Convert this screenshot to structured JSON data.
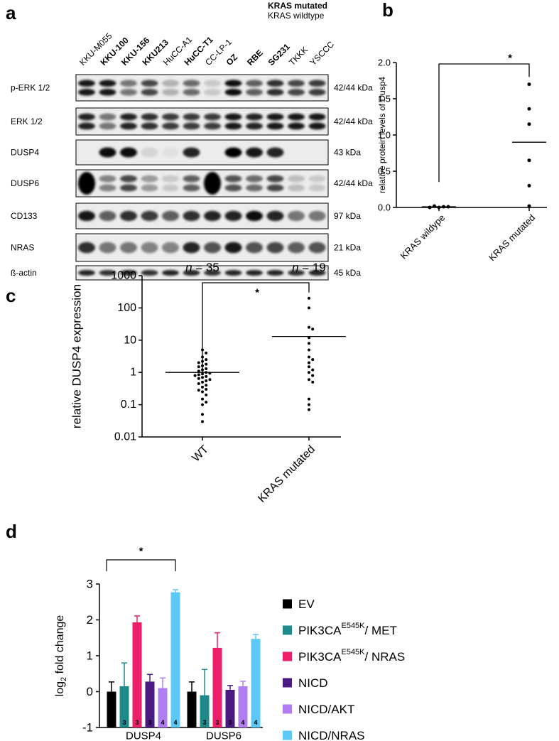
{
  "panel_labels": [
    "a",
    "b",
    "c",
    "d"
  ],
  "blot": {
    "legend": [
      {
        "label": "KRAS mutated",
        "color": "#b01c1c"
      },
      {
        "label": "KRAS wildtype",
        "color": "#000000"
      }
    ],
    "lanes": [
      {
        "label": "KKU-M055",
        "mutated": false
      },
      {
        "label": "KKU-100",
        "mutated": true
      },
      {
        "label": "KKU-156",
        "mutated": true
      },
      {
        "label": "KKU213",
        "mutated": true
      },
      {
        "label": "HuCC-A1",
        "mutated": false
      },
      {
        "label": "HuCC-T1",
        "mutated": true
      },
      {
        "label": "CC-LP-1",
        "mutated": false
      },
      {
        "label": "OZ",
        "mutated": true
      },
      {
        "label": "RBE",
        "mutated": true
      },
      {
        "label": "SG231",
        "mutated": true
      },
      {
        "label": "TKKK",
        "mutated": false
      },
      {
        "label": "YSCCC",
        "mutated": false
      }
    ],
    "rows": [
      {
        "label": "p-ERK 1/2",
        "size": "42/44 kDa"
      },
      {
        "label": "ERK 1/2",
        "size": "42/44 kDa"
      },
      {
        "label": "DUSP4",
        "size": "43 kDa"
      },
      {
        "label": "DUSP6",
        "size": "42/44 kDa"
      },
      {
        "label": "CD133",
        "size": "97 kDa"
      },
      {
        "label": "NRAS",
        "size": "21 kDa"
      },
      {
        "label": "ß-actin",
        "size": "45 kDa"
      }
    ]
  },
  "chart_data": [
    {
      "type": "dot_plot",
      "ylabel": "relative protein levels of Dusp4",
      "categories": [
        "KRAS wildype",
        "KRAS mutated"
      ],
      "groups": [
        [
          0.0,
          0.01,
          0.02,
          0.01,
          0.0
        ],
        [
          1.7,
          1.36,
          1.15,
          0.65,
          0.3,
          0.02
        ]
      ],
      "means": [
        0.01,
        0.9
      ],
      "ylim": [
        0,
        2.0
      ],
      "yticks": [
        {
          "value": 0,
          "label": "0.0"
        },
        {
          "value": 0.5,
          "label": "0.5"
        },
        {
          "value": 1,
          "label": "1.0"
        },
        {
          "value": 1.5,
          "label": "1.5"
        },
        {
          "value": 2,
          "label": "2.0"
        }
      ],
      "significance": "*",
      "color": "#000000"
    },
    {
      "type": "dot_plot",
      "ylabel": "relative  DUSP4 expression",
      "log_scale": true,
      "categories": [
        "WT",
        "KRAS mutated"
      ],
      "groups": [
        [
          5,
          4,
          3,
          2.5,
          2.2,
          2,
          1.8,
          1.6,
          1.5,
          1.3,
          1.2,
          1.1,
          1.0,
          0.95,
          0.9,
          0.85,
          0.8,
          0.75,
          0.7,
          0.65,
          0.6,
          0.55,
          0.5,
          0.45,
          0.4,
          0.35,
          0.3,
          0.28,
          0.25,
          0.2,
          0.15,
          0.12,
          0.1,
          0.05,
          0.03
        ],
        [
          200,
          100,
          25,
          22,
          12,
          8,
          5,
          3,
          2.5,
          2,
          1.5,
          1.2,
          1,
          0.8,
          0.6,
          0.5,
          0.15,
          0.1,
          0.07
        ]
      ],
      "means": [
        1.0,
        13
      ],
      "annotations": [
        {
          "italic": "n",
          "text": " = 35"
        },
        {
          "italic": "n",
          "text": " = 19"
        }
      ],
      "ylim": [
        0.01,
        1000
      ],
      "yticks": [
        0.01,
        0.1,
        1,
        10,
        100,
        1000
      ],
      "significance": "*",
      "color": "#000000"
    },
    {
      "type": "grouped_bar",
      "ylabel": {
        "text": "log",
        "sub": "2",
        "suffix": " fold change"
      },
      "categories": [
        "DUSP4",
        "DUSP6"
      ],
      "ylim": [
        -1,
        3
      ],
      "yticks": [
        -1,
        0,
        1,
        2,
        3
      ],
      "significance": "*",
      "series": [
        {
          "name": "EV",
          "color": "#000000",
          "values": [
            0,
            0
          ],
          "errors": [
            0.27,
            0.27
          ],
          "n": [
            3,
            3
          ]
        },
        {
          "name": "PIK3CA",
          "name_sup": "E545K",
          "name_suffix": "/ MET",
          "color": "#1f8a8a",
          "values": [
            0.15,
            -0.1
          ],
          "errors": [
            0.65,
            0.72
          ],
          "n": [
            3,
            3
          ]
        },
        {
          "name": "PIK3CA",
          "name_sup": "E545K",
          "name_suffix": "/ NRAS",
          "color": "#ee1f6a",
          "values": [
            1.93,
            1.22
          ],
          "errors": [
            0.18,
            0.42
          ],
          "n": [
            3,
            3
          ]
        },
        {
          "name": "NICD",
          "color": "#4a1a82",
          "values": [
            0.28,
            0.05
          ],
          "errors": [
            0.2,
            0.12
          ],
          "n": [
            3,
            3
          ]
        },
        {
          "name": "NICD/AKT",
          "color": "#b07ef0",
          "values": [
            0.1,
            0.15
          ],
          "errors": [
            0.28,
            0.14
          ],
          "n": [
            4,
            4
          ]
        },
        {
          "name": "NICD/NRAS",
          "color": "#5cc8f5",
          "values": [
            2.77,
            1.47
          ],
          "errors": [
            0.07,
            0.12
          ],
          "n": [
            4,
            4
          ]
        }
      ]
    }
  ]
}
